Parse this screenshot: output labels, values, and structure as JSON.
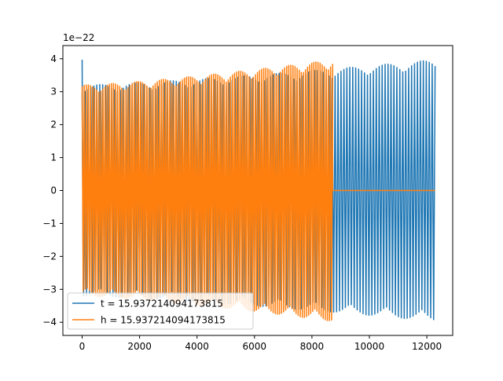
{
  "chart_data": {
    "type": "line",
    "title": "",
    "xlabel": "",
    "ylabel": "",
    "offset_label": "1e−22",
    "xlim": [
      -670,
      12900
    ],
    "ylim": [
      -4.4,
      4.4
    ],
    "grid": false,
    "legend_position": "lower-left",
    "x_ticks": [
      0,
      2000,
      4000,
      6000,
      8000,
      10000,
      12000
    ],
    "x_tick_labels": [
      "0",
      "2000",
      "4000",
      "6000",
      "8000",
      "10000",
      "12000"
    ],
    "y_ticks": [
      -4,
      -3,
      -2,
      -1,
      0,
      1,
      2,
      3,
      4
    ],
    "y_tick_labels": [
      "−4",
      "−3",
      "−2",
      "−1",
      "0",
      "1",
      "2",
      "3",
      "4"
    ],
    "series": [
      {
        "name": "t = 15.937214094173815",
        "color": "#1f77b4",
        "x_start": 0,
        "x_end": 12288,
        "amplitude_start": 3.2,
        "amplitude_end": 3.97,
        "initial_spike": 3.97,
        "baseline_after": null
      },
      {
        "name": "h = 15.937214094173815",
        "color": "#ff7f0e",
        "x_start": 0,
        "x_end": 8720,
        "amplitude_start": 3.2,
        "amplitude_end": 3.97,
        "initial_spike": null,
        "baseline_after": 0
      }
    ]
  }
}
